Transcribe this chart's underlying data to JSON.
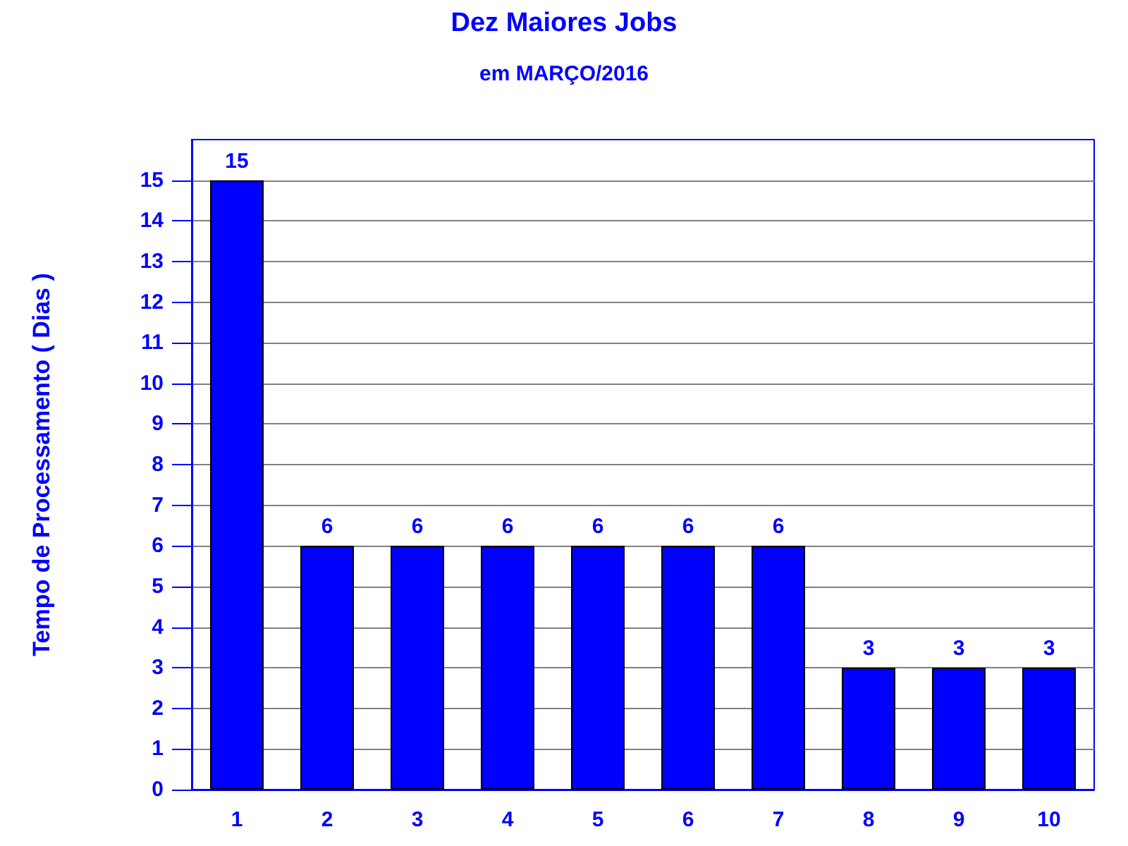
{
  "chart_data": {
    "type": "bar",
    "title": "Dez Maiores Jobs",
    "subtitle": "em MARÇO/2016",
    "ylabel": "Tempo de Processamento ( Dias )",
    "categories": [
      "1",
      "2",
      "3",
      "4",
      "5",
      "6",
      "7",
      "8",
      "9",
      "10"
    ],
    "values": [
      15,
      6,
      6,
      6,
      6,
      6,
      6,
      3,
      3,
      3
    ],
    "color": "#0000ff",
    "ylim": [
      0,
      16
    ],
    "yticks": [
      0,
      1,
      2,
      3,
      4,
      5,
      6,
      7,
      8,
      9,
      10,
      11,
      12,
      13,
      14,
      15
    ],
    "grid": "y",
    "data_labels": true
  }
}
